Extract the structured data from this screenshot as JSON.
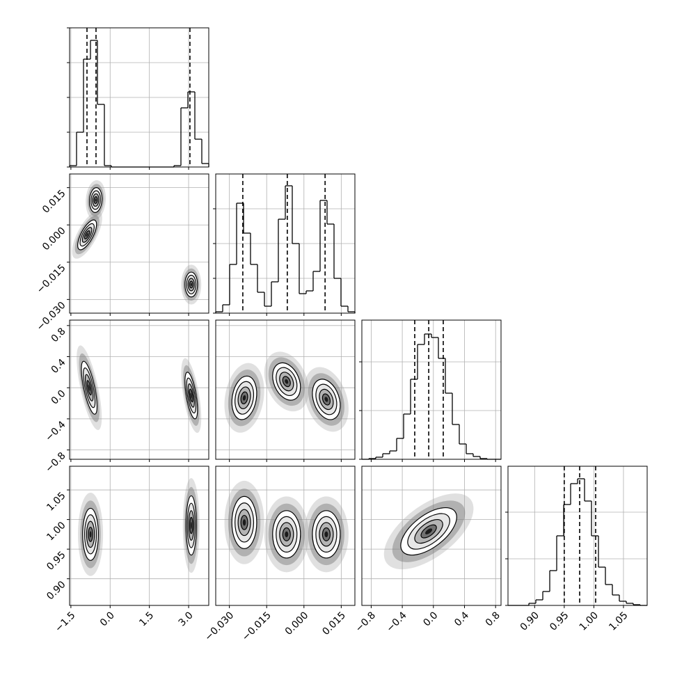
{
  "chart_data": {
    "type": "corner",
    "axes": [
      {
        "lim": [
          -1.55,
          3.77
        ],
        "ticks": [
          {
            "value": -1.5,
            "label": "−1.5"
          },
          {
            "value": 0,
            "label": "0.0"
          },
          1.5,
          {
            "value": 3,
            "label": "3.0"
          }
        ]
      },
      {
        "lim": [
          -0.0355,
          0.0205
        ],
        "ticks": [
          {
            "value": -0.03,
            "label": "−0.030"
          },
          {
            "value": -0.015,
            "label": "−0.015"
          },
          {
            "value": 0,
            "label": "0.000"
          },
          0.015
        ]
      },
      {
        "lim": [
          -0.92,
          0.87
        ],
        "ticks": [
          {
            "value": -0.8,
            "label": "−0.8"
          },
          {
            "value": -0.4,
            "label": "−0.4"
          },
          {
            "value": 0,
            "label": "0.0"
          },
          0.4,
          0.8
        ]
      },
      {
        "lim": [
          0.855,
          1.09
        ],
        "ticks": [
          {
            "value": 0.9,
            "label": "0.90"
          },
          0.95,
          {
            "value": 1,
            "label": "1.00"
          },
          1.05
        ]
      }
    ],
    "diagonal": [
      {
        "bins": [
          -1.55,
          -1.284,
          -1.018,
          -0.752,
          -0.486,
          -0.22,
          0.046,
          0.312,
          0.578,
          0.844,
          1.11,
          1.376,
          1.642,
          1.908,
          2.174,
          2.44,
          2.706,
          2.972,
          3.238,
          3.504,
          3.77
        ],
        "counts": [
          2,
          50,
          155,
          182,
          90,
          2,
          0,
          0,
          0,
          0,
          0,
          0,
          0,
          0,
          0,
          2,
          85,
          108,
          40,
          5
        ],
        "quantiles": [
          -0.885,
          -0.54,
          3.05
        ],
        "ylim": [
          0,
          200
        ],
        "yticks": [
          0,
          50,
          100,
          150,
          200
        ]
      },
      {
        "bins": [
          -0.0355,
          -0.0327,
          -0.0299,
          -0.0271,
          -0.0243,
          -0.0215,
          -0.0187,
          -0.0159,
          -0.0131,
          -0.0103,
          -0.0075,
          -0.0047,
          -0.0019,
          0.0009,
          0.0037,
          0.0065,
          0.0093,
          0.0121,
          0.0149,
          0.0177,
          0.0205
        ],
        "counts": [
          2,
          12,
          70,
          158,
          115,
          70,
          30,
          10,
          45,
          135,
          183,
          100,
          28,
          32,
          60,
          162,
          128,
          50,
          10,
          2
        ],
        "quantiles": [
          -0.0246,
          -0.0067,
          0.0085
        ],
        "ylim": [
          0,
          200
        ],
        "yticks": [
          0,
          50,
          100,
          150
        ]
      },
      {
        "bins": [
          -0.92,
          -0.8305,
          -0.741,
          -0.6515,
          -0.562,
          -0.4725,
          -0.383,
          -0.2935,
          -0.204,
          -0.1145,
          -0.025,
          0.0645,
          0.154,
          0.2435,
          0.333,
          0.4225,
          0.512,
          0.6015,
          0.691,
          0.7805,
          0.87
        ],
        "counts": [
          0,
          1,
          3,
          8,
          12,
          30,
          65,
          115,
          165,
          180,
          175,
          145,
          95,
          50,
          22,
          8,
          4,
          1,
          0,
          0
        ],
        "quantiles": [
          -0.24,
          -0.06,
          0.127
        ],
        "ylim": [
          0,
          200
        ],
        "yticks": [
          0,
          70,
          140
        ]
      },
      {
        "bins": [
          0.855,
          0.86675,
          0.8785,
          0.89025,
          0.902,
          0.91375,
          0.9255,
          0.93725,
          0.949,
          0.96075,
          0.9725,
          0.98425,
          0.996,
          1.00775,
          1.0195,
          1.03125,
          1.043,
          1.05475,
          1.0665,
          1.07825,
          1.09
        ],
        "counts": [
          0,
          0,
          0,
          3,
          8,
          20,
          50,
          100,
          145,
          175,
          182,
          150,
          100,
          55,
          30,
          15,
          6,
          3,
          1,
          0
        ],
        "quantiles": [
          0.95,
          0.976,
          1.003
        ],
        "ylim": [
          0,
          200
        ],
        "yticks": [
          0,
          67,
          134
        ]
      }
    ],
    "panels": [
      {
        "clusters": [
          {
            "x": -0.55,
            "y": 0.01,
            "sx": 0.12,
            "sy": 0.0025,
            "rho": 0.1
          },
          {
            "x": -0.88,
            "y": -0.004,
            "sx": 0.18,
            "sy": 0.003,
            "rho": 0.7
          },
          {
            "x": 3.1,
            "y": -0.024,
            "sx": 0.12,
            "sy": 0.0025,
            "rho": 0
          }
        ]
      },
      {
        "clusters": [
          {
            "x": -0.8,
            "y": 0,
            "sx": 0.15,
            "sy": 0.17,
            "rho": -0.7
          },
          {
            "x": 3.1,
            "y": -0.1,
            "sx": 0.12,
            "sy": 0.15,
            "rho": -0.6
          }
        ]
      },
      {
        "clusters": [
          {
            "x": -0.024,
            "y": -0.13,
            "sx": 0.0025,
            "sy": 0.14,
            "rho": 0.2
          },
          {
            "x": -0.007,
            "y": 0.08,
            "sx": 0.0028,
            "sy": 0.12,
            "rho": -0.3
          },
          {
            "x": 0.009,
            "y": -0.15,
            "sx": 0.0028,
            "sy": 0.13,
            "rho": -0.3
          }
        ]
      },
      {
        "clusters": [
          {
            "x": -0.75,
            "y": 0.975,
            "sx": 0.15,
            "sy": 0.022,
            "rho": 0
          },
          {
            "x": 3.1,
            "y": 0.99,
            "sx": 0.1,
            "sy": 0.025,
            "rho": 0
          }
        ]
      },
      {
        "clusters": [
          {
            "x": -0.024,
            "y": 0.995,
            "sx": 0.0025,
            "sy": 0.022,
            "rho": 0
          },
          {
            "x": -0.007,
            "y": 0.975,
            "sx": 0.0028,
            "sy": 0.02,
            "rho": 0
          },
          {
            "x": 0.009,
            "y": 0.975,
            "sx": 0.0028,
            "sy": 0.02,
            "rho": 0
          }
        ]
      },
      {
        "clusters": [
          {
            "x": -0.06,
            "y": 0.98,
            "sx": 0.18,
            "sy": 0.02,
            "rho": 0.6
          }
        ]
      }
    ]
  }
}
